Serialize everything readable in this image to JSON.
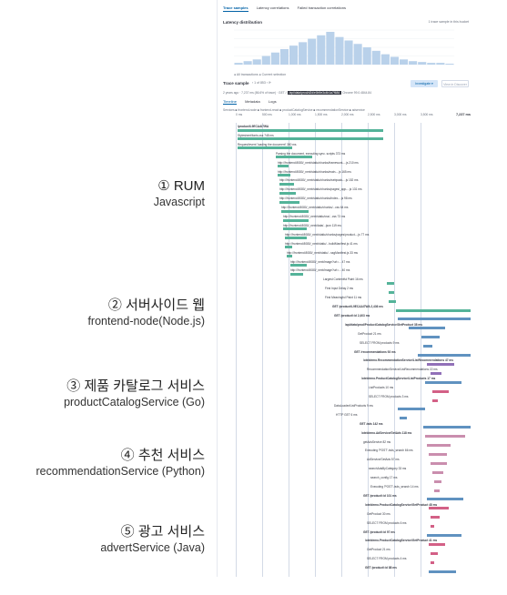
{
  "colors": {
    "rum": "#54b399",
    "frontend": "#6092c0",
    "product": "#d36086",
    "recommendation": "#9170b8",
    "advert": "#ca8eae",
    "brace": "#1f6fc6"
  },
  "annotations": [
    {
      "title": "① RUM",
      "subtitle": "Javascript"
    },
    {
      "title": "② 서버사이드 웹",
      "subtitle": "frontend-node(Node.js)"
    },
    {
      "title": "③ 제품 카탈로그 서비스",
      "subtitle": "productCatalogService (Go)"
    },
    {
      "title": "④ 추천 서비스",
      "subtitle": "recommendationService (Python)"
    },
    {
      "title": "⑤ 광고 서비스",
      "subtitle": "advertService (Java)"
    }
  ],
  "panel": {
    "tabs": [
      "Trace samples",
      "Latency correlations",
      "Failed transaction correlations"
    ],
    "latency_title": "Latency distribution",
    "latency_note": "1 trace sample in this bucket",
    "histogram": [
      2,
      4,
      6,
      10,
      14,
      18,
      22,
      26,
      30,
      34,
      38,
      32,
      28,
      24,
      20,
      16,
      12,
      9,
      6,
      4,
      3,
      2,
      2,
      1
    ],
    "histogram_legend": "● All transactions   ● Current selection",
    "trace_title": "Trace sample",
    "pager": "‹  1 of 853  ›  ⟳",
    "investigate": "Investigate ▾",
    "discover": "View in Discover",
    "trace_meta_pre": "2 years ago · 7,237 ms (86.6% of trace) · GET /",
    "trace_meta_hl": "/api/data/prod/d2d/e0b9e3c4b1a7f684",
    "trace_meta_post": "Chrome 99.0.4844.84",
    "subtabs": [
      "Timeline",
      "Metadata",
      "Logs"
    ],
    "services_legend": "Services  ■ frontend-node  ■ frontend-react  ■ productCatalogService  ■ recommendationService  ■ adservice",
    "ruler_ticks": [
      "0 ms",
      "500 ms",
      "1,000 ms",
      "1,500 ms",
      "2,000 ms",
      "2,500 ms",
      "3,000 ms",
      "3,500 ms"
    ],
    "ruler_end": "7,237 ms",
    "spans": [
      {
        "label": "/product/L9ECAAI7WA",
        "bold": true
      },
      {
        "label": "Stylesheet/fonts.css  748 ms"
      },
      {
        "label": "Request/event 'loading the document'  380 ms"
      },
      {
        "label": "Parsing the document, executing sync. scripts  373 ms"
      },
      {
        "label": "http://frontend:8080/_next/static/chunks/framework-...js  210 ms"
      },
      {
        "label": "http://frontend:8080/_next/static/chunks/main-...js  165 ms"
      },
      {
        "label": "http://frontend:8080/_next/static/chunks/webpack-...js  152 ms"
      },
      {
        "label": "http://frontend:8080/_next/static/chunks/pages/_app-...js  131 ms"
      },
      {
        "label": "http://frontend:8080/_next/static/chunks/index-...js  98 ms"
      },
      {
        "label": "http://frontend:8080/_next/static/chunks/...css  64 ms"
      },
      {
        "label": "http://frontend:8080/_next/static/css/...css  73 ms"
      },
      {
        "label": "http://frontend:8080/_next/data/...json  119 ms"
      },
      {
        "label": "http://frontend:8080/_next/static/chunks/pages/product-...js  77 ms"
      },
      {
        "label": "http://frontend:8080/_next/static/...buildManifest.js  41 ms"
      },
      {
        "label": "http://frontend:8080/_next/static/...ssgManifest.js  33 ms"
      },
      {
        "label": "http://frontend:8080/_next/image?url=...  47 ms"
      },
      {
        "label": "http://frontend:8080/_next/image?url=...  40 ms"
      },
      {
        "label": "Largest Contentful Paint  16 ms"
      },
      {
        "label": "First Input Delay  2 ms"
      },
      {
        "label": "First Meaningful Paint  11 ms"
      },
      {
        "label": "GET /product/L9ECAAI7WA  2,436 ms",
        "bold": true
      },
      {
        "label": "GET /product/:id  2,403 ms",
        "bold": true
      },
      {
        "label": "/api/data/prod/ProductCatalogService/GetProduct  38 ms",
        "bold": true
      },
      {
        "label": "GetProduct  21 ms"
      },
      {
        "label": "SELECT FROM products  9 ms"
      },
      {
        "label": "GET /recommendations  93 ms",
        "bold": true
      },
      {
        "label": "/oteldemo.RecommendationService/ListRecommendations  47 ms",
        "bold": true
      },
      {
        "label": "RecommendationService/ListRecommendations  22 ms"
      },
      {
        "label": "/oteldemo.ProductCatalogService/ListProducts  17 ms",
        "bold": true
      },
      {
        "label": "ListProducts  10 ms"
      },
      {
        "label": "SELECT FROM products  3 ms"
      },
      {
        "label": "DataLoader/ListProducts  9 ms"
      },
      {
        "label": "HTTP GET  6 ms"
      },
      {
        "label": "GET /ads  142 ms",
        "bold": true
      },
      {
        "label": "/oteldemo.AdService/GetAds  118 ms",
        "bold": true
      },
      {
        "label": "getAdsService  82 ms"
      },
      {
        "label": "Executing 'POST' /ads_search  66 ms"
      },
      {
        "label": "AdService/GetAds  57 ms"
      },
      {
        "label": "searchAdsByCategory  33 ms"
      },
      {
        "label": "search_config  17 ms"
      },
      {
        "label": "Executing 'POST' /ads_search  14 ms"
      },
      {
        "label": "GET /product/:id  101 ms",
        "bold": true
      },
      {
        "label": "/oteldemo.ProductCatalogService/GetProduct  48 ms",
        "bold": true
      },
      {
        "label": "GetProduct  30 ms"
      },
      {
        "label": "SELECT FROM products  6 ms"
      },
      {
        "label": "GET /product/:id  97 ms",
        "bold": true
      },
      {
        "label": "/oteldemo.ProductCatalogService/GetProduct  41 ms",
        "bold": true
      },
      {
        "label": "GetProduct  21 ms"
      },
      {
        "label": "SELECT FROM products  4 ms"
      },
      {
        "label": "GET /product/:id  88 ms",
        "bold": true
      }
    ]
  }
}
